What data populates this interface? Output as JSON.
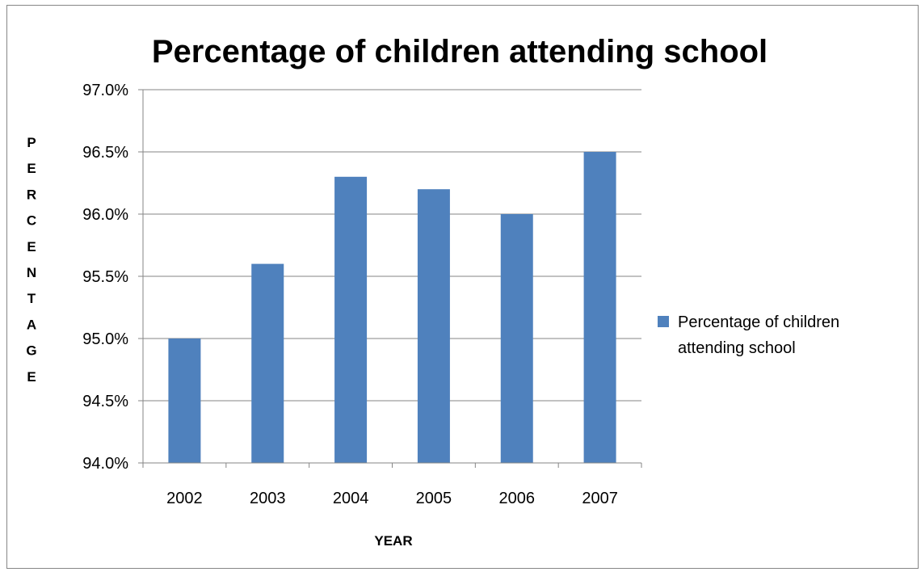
{
  "chart_data": {
    "type": "bar",
    "title": "Percentage of children attending school",
    "xlabel": "YEAR",
    "ylabel": "PERCENTAGE",
    "categories": [
      "2002",
      "2003",
      "2004",
      "2005",
      "2006",
      "2007"
    ],
    "series": [
      {
        "name": "Percentage of children attending school",
        "values": [
          95.0,
          95.6,
          96.3,
          96.2,
          96.0,
          96.5
        ],
        "color": "#4f81bd"
      }
    ],
    "ylim": [
      94.0,
      97.0
    ],
    "yticks": [
      "94.0%",
      "94.5%",
      "95.0%",
      "95.5%",
      "96.0%",
      "96.5%",
      "97.0%"
    ],
    "grid": true,
    "legend_position": "right",
    "legend_lines": [
      "Percentage of children",
      "attending school"
    ]
  }
}
